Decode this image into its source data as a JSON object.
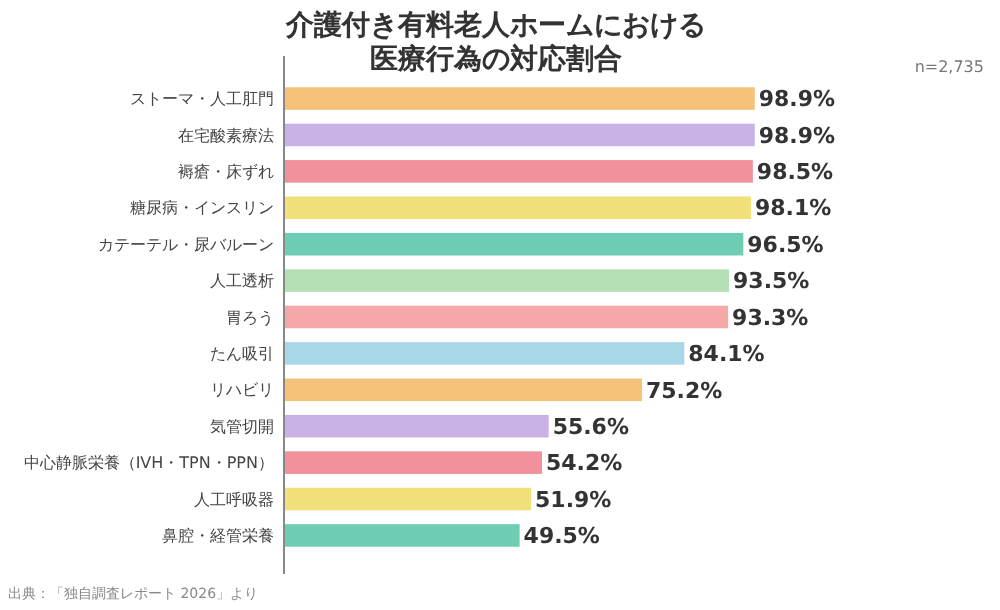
{
  "chart_data": {
    "type": "bar",
    "orientation": "horizontal",
    "title": "介護付き有料老人ホームにおける医療行為の対応割合",
    "categories": [
      "ストーマ・人工肛門",
      "在宅酸素療法",
      "褥瘡・床ずれ",
      "糖尿病・インスリン",
      "カテーテル・尿バルーン",
      "人工透析",
      "胃ろう",
      "たん吸引",
      "リハビリ",
      "気管切開",
      "中心静脈栄養（IVH・TPN・PPN）",
      "人工呼吸器",
      "鼻腔・経管栄養"
    ],
    "values": [
      98.9,
      98.9,
      98.5,
      98.1,
      96.5,
      93.5,
      93.3,
      84.1,
      75.2,
      55.6,
      54.2,
      51.9,
      49.5
    ],
    "colors": [
      "#f5c27a",
      "#c9b3e6",
      "#f0919c",
      "#f2e07a",
      "#6fcdb5",
      "#b5e0b5",
      "#f5a8a8",
      "#a8d8e8",
      "#f5c27a",
      "#c9b3e6",
      "#f0919c",
      "#f2e07a",
      "#6fcdb5"
    ],
    "value_labels": [
      "98.9%",
      "98.9%",
      "98.5%",
      "98.1%",
      "96.5%",
      "93.5%",
      "93.3%",
      "84.1%",
      "75.2%",
      "55.6%",
      "54.2%",
      "51.9%",
      "49.5%"
    ],
    "xlim": [
      0,
      100
    ],
    "annotations": [
      "n=2,735",
      "出典：「独自調査レポート 2026」より"
    ]
  }
}
